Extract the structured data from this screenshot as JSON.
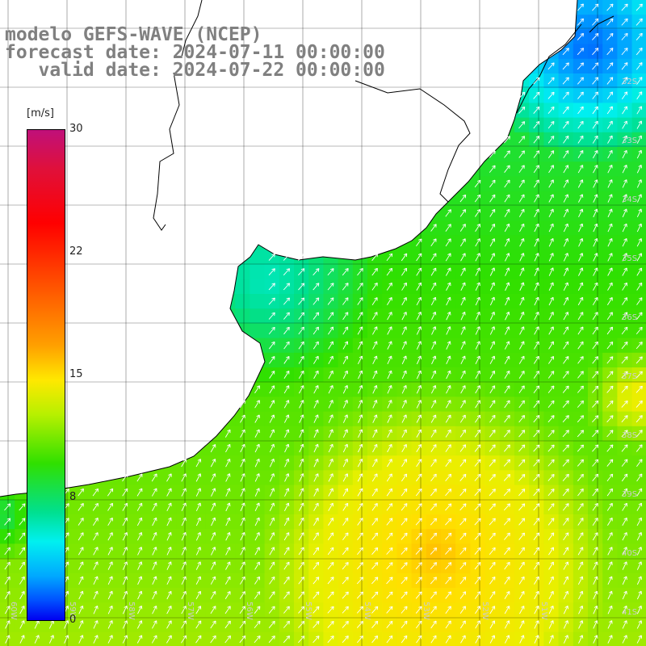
{
  "title": {
    "line1": "modelo GEFS-WAVE (NCEP)",
    "line2": "forecast date: 2024-07-11 00:00:00",
    "line3": "   valid date: 2024-07-22 00:00:00"
  },
  "legend": {
    "unit": "[m/s]",
    "ticks": [
      "30",
      "22",
      "15",
      "8",
      "0"
    ],
    "range": [
      0,
      30
    ]
  },
  "axes": {
    "lon_labels": [
      "60W",
      "59W",
      "58W",
      "57W",
      "56W",
      "55W",
      "54W",
      "53W",
      "52W",
      "51W"
    ],
    "lat_labels": [
      "32S",
      "33S",
      "34S",
      "35S",
      "36S",
      "37S",
      "38S",
      "39S",
      "40S",
      "41S"
    ]
  },
  "colors": {
    "land": "#ffffff",
    "coast": "#000000",
    "grid": "#000000",
    "arrows": "#ffffff",
    "label": "#cccccc"
  }
}
